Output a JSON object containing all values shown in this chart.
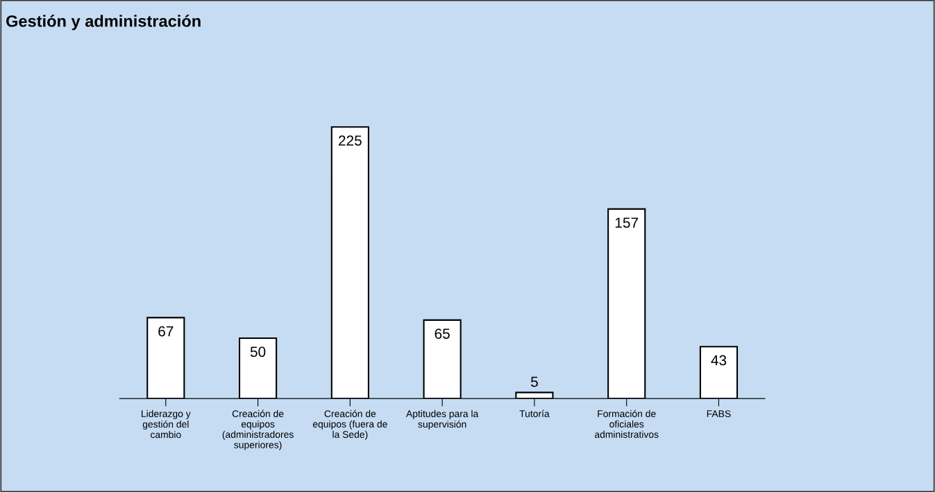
{
  "chart_data": {
    "type": "bar",
    "title": "Gestión y administración",
    "categories": [
      "Liderazgo y gestión del cambio",
      "Creación de equipos (administradores superiores)",
      "Creación de equipos (fuera de la Sede)",
      "Aptitudes para la supervisión",
      "Tutoría",
      "Formación de oficiales administrativos",
      "FABS"
    ],
    "values": [
      67,
      50,
      225,
      65,
      5,
      157,
      43
    ],
    "color": "#ffffff",
    "data_labels": true,
    "grid": false,
    "legend": false,
    "tick_labels": "x"
  }
}
